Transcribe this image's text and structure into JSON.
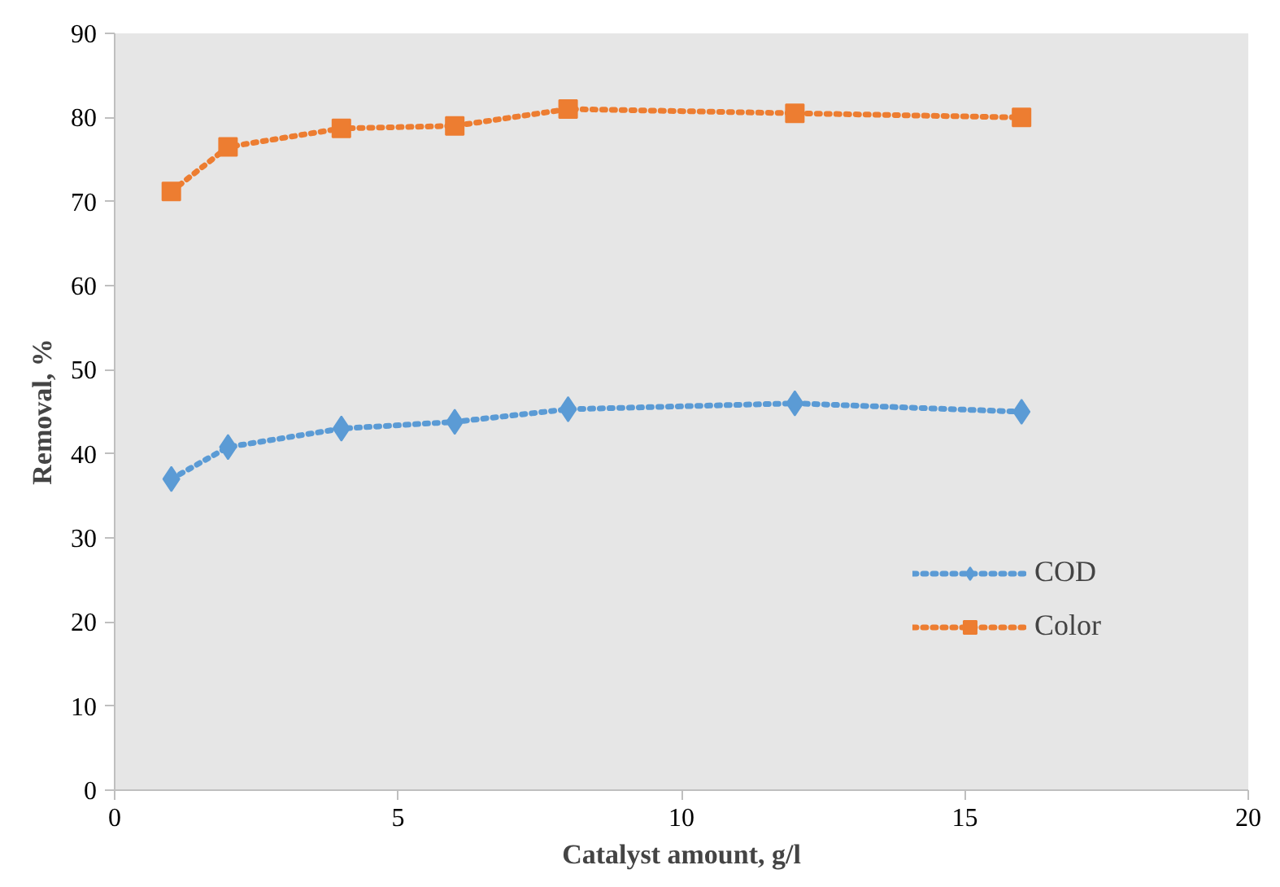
{
  "chart_data": {
    "type": "line",
    "xlabel": "Catalyst amount, g/l",
    "ylabel": "Removal, %",
    "x": [
      1,
      2,
      4,
      6,
      8,
      12,
      16
    ],
    "series": [
      {
        "name": "COD",
        "color": "#5b9bd5",
        "marker": "diamond",
        "values": [
          37,
          40.8,
          43,
          43.8,
          45.3,
          46,
          45
        ]
      },
      {
        "name": "Color",
        "color": "#ed7d31",
        "marker": "square",
        "values": [
          71.2,
          76.5,
          78.7,
          79,
          81,
          80.5,
          80
        ]
      }
    ],
    "xlim": [
      0,
      20
    ],
    "xticks": [
      0,
      5,
      10,
      15,
      20
    ],
    "ylim": [
      0,
      90
    ],
    "yticks": [
      0,
      10,
      20,
      30,
      40,
      50,
      60,
      70,
      80,
      90
    ],
    "legend": "bottom right",
    "line_style": "dotted"
  }
}
